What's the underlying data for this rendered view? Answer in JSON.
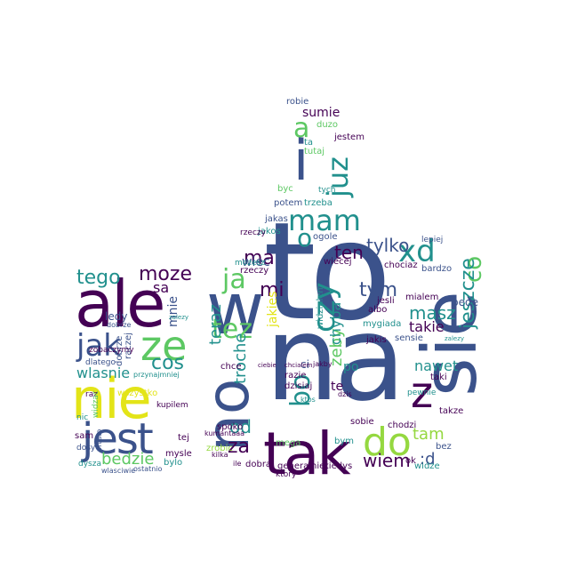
{
  "colors": {
    "background": "#ffffff",
    "dark_purple": "#440154",
    "slate_blue": "#3b528b",
    "teal": "#21908d",
    "green": "#5dc863",
    "yellow": "#e3e418",
    "lime": "#95d840"
  },
  "words": [
    {
      "text": "to",
      "color": "slate_blue"
    },
    {
      "text": "na",
      "color": "slate_blue"
    },
    {
      "text": "sie",
      "color": "slate_blue"
    },
    {
      "text": "tak",
      "color": "dark_purple"
    },
    {
      "text": "ale",
      "color": "dark_purple"
    },
    {
      "text": "nie",
      "color": "yellow"
    },
    {
      "text": "jest",
      "color": "slate_blue"
    },
    {
      "text": "w",
      "color": "slate_blue"
    },
    {
      "text": "no",
      "color": "slate_blue"
    },
    {
      "text": "i",
      "color": "slate_blue"
    },
    {
      "text": "do",
      "color": "lime"
    },
    {
      "text": "ze",
      "color": "green"
    },
    {
      "text": "z",
      "color": "dark_purple"
    },
    {
      "text": "jak",
      "color": "slate_blue"
    },
    {
      "text": "mam",
      "color": "teal"
    },
    {
      "text": "a",
      "color": "green"
    },
    {
      "text": "o",
      "color": "teal"
    },
    {
      "text": "juz",
      "color": "teal"
    },
    {
      "text": "xd",
      "color": "teal"
    },
    {
      "text": "czy",
      "color": "teal"
    },
    {
      "text": "ja",
      "color": "green"
    },
    {
      "text": "tez",
      "color": "green"
    },
    {
      "text": "bo",
      "color": "teal"
    },
    {
      "text": "tylko",
      "color": "slate_blue"
    },
    {
      "text": "tym",
      "color": "slate_blue"
    },
    {
      "text": "ten",
      "color": "dark_purple"
    },
    {
      "text": "cos",
      "color": "teal"
    },
    {
      "text": "mi",
      "color": "dark_purple"
    },
    {
      "text": "ma",
      "color": "dark_purple"
    },
    {
      "text": "co",
      "color": "green"
    },
    {
      "text": "masz",
      "color": "teal"
    },
    {
      "text": "jeszcze",
      "color": "teal"
    },
    {
      "text": "tego",
      "color": "teal"
    },
    {
      "text": "moze",
      "color": "dark_purple"
    },
    {
      "text": "bedzie",
      "color": "green"
    },
    {
      "text": "wiem",
      "color": "dark_purple"
    },
    {
      "text": ":d",
      "color": "slate_blue"
    },
    {
      "text": "tam",
      "color": "lime"
    },
    {
      "text": "za",
      "color": "dark_purple"
    },
    {
      "text": "teraz",
      "color": "teal"
    },
    {
      "text": "troche",
      "color": "teal"
    },
    {
      "text": "wlasnie",
      "color": "teal"
    },
    {
      "text": "od",
      "color": "teal"
    },
    {
      "text": "nawet",
      "color": "teal"
    },
    {
      "text": "takie",
      "color": "dark_purple"
    },
    {
      "text": "wiec",
      "color": "slate_blue"
    },
    {
      "text": "zeby",
      "color": "green"
    },
    {
      "text": "chyba",
      "color": "teal"
    },
    {
      "text": "sumie",
      "color": "dark_purple"
    },
    {
      "text": "mnie",
      "color": "slate_blue"
    },
    {
      "text": "sa",
      "color": "dark_purple"
    },
    {
      "text": "jakies",
      "color": "yellow"
    },
    {
      "text": "te",
      "color": "dark_purple"
    },
    {
      "text": "po",
      "color": "teal"
    },
    {
      "text": "ci",
      "color": "slate_blue"
    },
    {
      "text": "bede",
      "color": "slate_blue"
    },
    {
      "text": "jestem",
      "color": "dark_purple"
    },
    {
      "text": "taki",
      "color": "dark_purple"
    },
    {
      "text": "duzo",
      "color": "green"
    },
    {
      "text": "robie",
      "color": "slate_blue"
    },
    {
      "text": "jakas",
      "color": "slate_blue"
    },
    {
      "text": "potem",
      "color": "slate_blue"
    },
    {
      "text": "trzeba",
      "color": "teal"
    },
    {
      "text": "byc",
      "color": "green"
    },
    {
      "text": "tutaj",
      "color": "green"
    },
    {
      "text": "ta",
      "color": "teal"
    },
    {
      "text": "mega",
      "color": "green"
    },
    {
      "text": "dobra",
      "color": "dark_purple"
    },
    {
      "text": "generalnie",
      "color": "dark_purple"
    },
    {
      "text": "kiedys",
      "color": "dark_purple"
    },
    {
      "text": "razie",
      "color": "dark_purple"
    },
    {
      "text": "dzisiaj",
      "color": "dark_purple"
    },
    {
      "text": "widzialem",
      "color": "teal"
    },
    {
      "text": "mozesz",
      "color": "teal"
    },
    {
      "text": "wiecej",
      "color": "dark_purple"
    },
    {
      "text": "rzeczy",
      "color": "dark_purple"
    },
    {
      "text": "jakos",
      "color": "teal"
    },
    {
      "text": "ogole",
      "color": "slate_blue"
    },
    {
      "text": "ledy",
      "color": "slate_blue"
    },
    {
      "text": "raczej",
      "color": "slate_blue"
    },
    {
      "text": "dobrze",
      "color": "slate_blue"
    },
    {
      "text": "dlatego",
      "color": "slate_blue"
    },
    {
      "text": "zobaczymy",
      "color": "dark_purple"
    },
    {
      "text": "przynajmniej",
      "color": "teal"
    },
    {
      "text": "wszystko",
      "color": "yellow"
    },
    {
      "text": "kupilem",
      "color": "dark_purple"
    },
    {
      "text": "sam",
      "color": "dark_purple"
    },
    {
      "text": "dosyc",
      "color": "slate_blue"
    },
    {
      "text": "dysza",
      "color": "teal"
    },
    {
      "text": "prosto",
      "color": "slate_blue"
    },
    {
      "text": "mysle",
      "color": "dark_purple"
    },
    {
      "text": "bylo",
      "color": "teal"
    },
    {
      "text": "tej",
      "color": "dark_purple"
    },
    {
      "text": "ostatnio",
      "color": "slate_blue"
    },
    {
      "text": "wlasciwie",
      "color": "slate_blue"
    },
    {
      "text": "nic",
      "color": "teal"
    },
    {
      "text": "raz",
      "color": "dark_purple"
    },
    {
      "text": "widzac",
      "color": "green"
    },
    {
      "text": "zalezy",
      "color": "teal"
    },
    {
      "text": "chce",
      "color": "dark_purple"
    },
    {
      "text": "spoko",
      "color": "dark_purple"
    },
    {
      "text": "zrobic",
      "color": "lime"
    },
    {
      "text": "kumantaaa",
      "color": "dark_purple"
    },
    {
      "text": "kilka",
      "color": "dark_purple"
    },
    {
      "text": "ile",
      "color": "dark_purple"
    },
    {
      "text": "tych",
      "color": "teal"
    },
    {
      "text": "sobie",
      "color": "dark_purple"
    },
    {
      "text": "chodzi",
      "color": "dark_purple"
    },
    {
      "text": "pewnie",
      "color": "teal"
    },
    {
      "text": "mialem",
      "color": "dark_purple"
    },
    {
      "text": "albo",
      "color": "dark_purple"
    },
    {
      "text": "jesli",
      "color": "dark_purple"
    },
    {
      "text": "chociaz",
      "color": "dark_purple"
    },
    {
      "text": "mygiada",
      "color": "teal"
    },
    {
      "text": "sensie",
      "color": "slate_blue"
    },
    {
      "text": "jakis",
      "color": "dark_purple"
    },
    {
      "text": "bardzo",
      "color": "slate_blue"
    },
    {
      "text": "lepiej",
      "color": "slate_blue"
    },
    {
      "text": "takze",
      "color": "dark_purple"
    },
    {
      "text": "bez",
      "color": "slate_blue"
    },
    {
      "text": "ok",
      "color": "dark_purple"
    },
    {
      "text": "widze",
      "color": "teal"
    },
    {
      "text": "ktory",
      "color": "dark_purple"
    },
    {
      "text": "jakby",
      "color": "dark_purple"
    },
    {
      "text": "ciebie",
      "color": "dark_purple"
    },
    {
      "text": "chcialem",
      "color": "dark_purple"
    },
    {
      "text": "zalezy",
      "color": "teal"
    },
    {
      "text": "bym",
      "color": "teal"
    },
    {
      "text": "rzeczy",
      "color": "dark_purple"
    },
    {
      "text": "dobrze",
      "color": "slate_blue"
    },
    {
      "text": "dzis",
      "color": "dark_purple"
    },
    {
      "text": "ktos",
      "color": "teal"
    }
  ]
}
